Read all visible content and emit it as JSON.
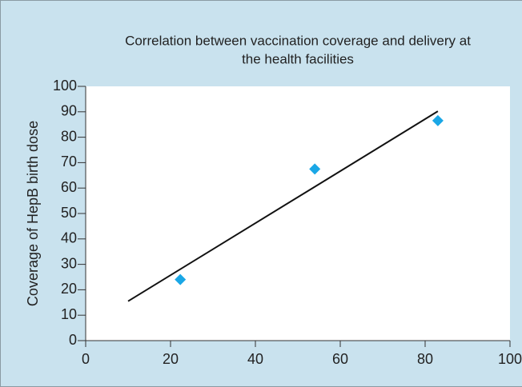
{
  "chart_data": {
    "type": "scatter",
    "title": [
      "Correlation between vaccination coverage and delivery at",
      "the health facilities"
    ],
    "y_label": "Coverage of HepB birth dose",
    "x": [
      22.3,
      54,
      83
    ],
    "values": [
      24,
      67.5,
      86.5
    ],
    "color": "#1aa7e6",
    "trendline": {
      "x": [
        10,
        83
      ],
      "y": [
        15.5,
        90.2
      ],
      "color": "#111111"
    },
    "xlim": [
      0,
      100
    ],
    "xticks": [
      0,
      20,
      40,
      60,
      80,
      100
    ],
    "ylim": [
      0,
      100
    ],
    "yticks": [
      0,
      10,
      20,
      30,
      40,
      50,
      60,
      70,
      80,
      90,
      100
    ]
  }
}
